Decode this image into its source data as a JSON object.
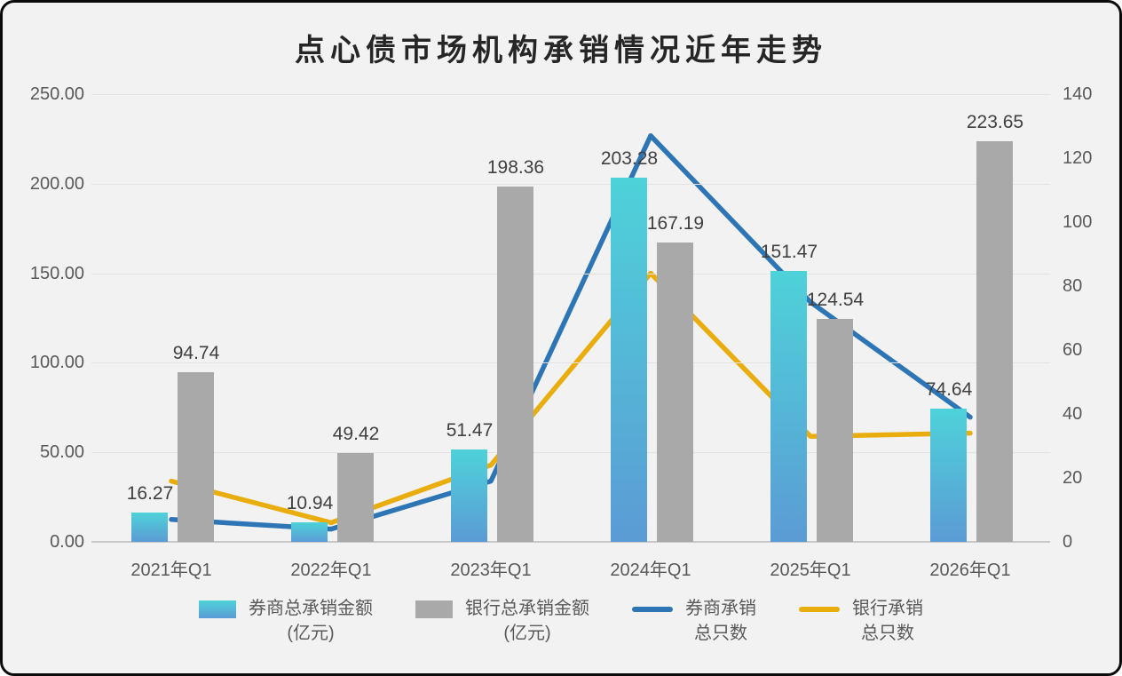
{
  "title": "点心债市场机构承销情况近年走势",
  "chart_data": {
    "type": "combo (bar + line)",
    "categories": [
      "2021年Q1",
      "2022年Q1",
      "2023年Q1",
      "2024年Q1",
      "2025年Q1",
      "2026年Q1"
    ],
    "bar_series": [
      {
        "name": "券商总承销金额(亿元)",
        "axis": "left",
        "values": [
          16.27,
          10.94,
          51.47,
          203.28,
          151.47,
          74.64
        ],
        "value_labels": [
          "16.27",
          "10.94",
          "51.47",
          "203.28",
          "151.47",
          "74.64"
        ]
      },
      {
        "name": "银行总承销金额(亿元)",
        "axis": "left",
        "values": [
          94.74,
          49.42,
          198.36,
          167.19,
          124.54,
          223.65
        ],
        "value_labels": [
          "94.74",
          "49.42",
          "198.36",
          "167.19",
          "124.54",
          "223.65"
        ]
      }
    ],
    "line_series": [
      {
        "name": "券商承销总只数",
        "axis": "right",
        "values_estimated_from_gridlines": true,
        "values": [
          7,
          4,
          19,
          127,
          75,
          39
        ]
      },
      {
        "name": "银行承销总只数",
        "axis": "right",
        "values_estimated_from_gridlines": true,
        "values": [
          19,
          6,
          24,
          84,
          33,
          34
        ]
      }
    ],
    "left_axis": {
      "min": 0,
      "max": 250,
      "step": 50,
      "tick_labels": [
        "0.00",
        "50.00",
        "100.00",
        "150.00",
        "200.00",
        "250.00"
      ]
    },
    "right_axis": {
      "min": 0,
      "max": 140,
      "step": 20,
      "tick_labels": [
        "0",
        "20",
        "40",
        "60",
        "80",
        "100",
        "120",
        "140"
      ]
    },
    "grid": "horizontal-only",
    "legend_position": "bottom",
    "legend": [
      {
        "label": "券商总承销金额\n(亿元)",
        "swatch": "bar-teal"
      },
      {
        "label": "银行总承销金额\n(亿元)",
        "swatch": "bar-gray"
      },
      {
        "label": "券商承销\n总只数",
        "swatch": "line-blue"
      },
      {
        "label": "银行承销\n总只数",
        "swatch": "line-yellow"
      }
    ],
    "colors": {
      "broker_bar_top": "#4ed2d9",
      "broker_bar_bottom": "#5b9bd5",
      "bank_bar": "#a9a9a9",
      "broker_line": "#2e75b6",
      "bank_line": "#e9ad0e",
      "background": "#f2f2f2",
      "gridline": "#e3e3e3",
      "axis_line": "#c9c9c9",
      "title_text": "#262626",
      "value_label_text": "#404040",
      "axis_text": "#595959"
    }
  }
}
